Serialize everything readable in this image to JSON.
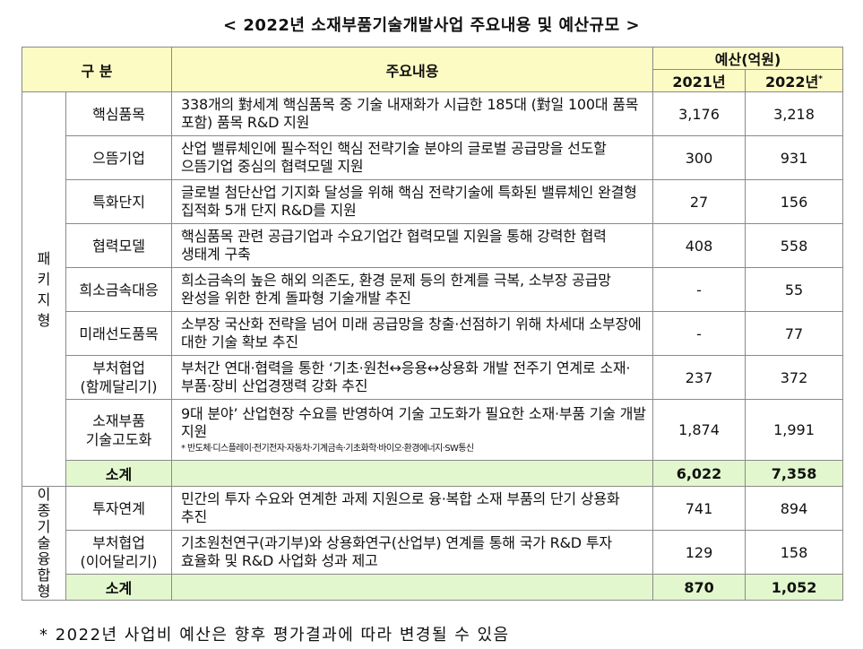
{
  "title": "< 2022년 소재부품기술개발사업 주요내용 및 예산규모 >",
  "header": {
    "category": "구  분",
    "content": "주요내용",
    "budget": "예산(억원)",
    "year_2021": "2021년",
    "year_2022": "2022년",
    "year_2022_mark": "*"
  },
  "groups": {
    "package": [
      "패",
      "키",
      "지",
      "형"
    ],
    "convergence": [
      "이",
      "종",
      "기",
      "술",
      "융",
      "합",
      "형"
    ]
  },
  "rows": [
    {
      "item": "핵심품목",
      "desc": "338개의 對세계 핵심품목 중 기술 내재화가 시급한 185대 (對일 100대 품목 포함) 품목 R&D 지원",
      "y2021": "3,176",
      "y2022": "3,218"
    },
    {
      "item": "으뜸기업",
      "desc": "산업 밸류체인에 필수적인 핵심 전략기술 분야의 글로벌 공급망을 선도할 으뜸기업 중심의 협력모델 지원",
      "y2021": "300",
      "y2022": "931"
    },
    {
      "item": "특화단지",
      "desc": "글로벌 첨단산업 기지화 달성을 위해 핵심 전략기술에 특화된 밸류체인 완결형 집적화 5개 단지 R&D를 지원",
      "y2021": "27",
      "y2022": "156"
    },
    {
      "item": "협력모델",
      "desc": "핵심품목 관련 공급기업과 수요기업간 협력모델 지원을 통해 강력한 협력 생태계 구축",
      "y2021": "408",
      "y2022": "558"
    },
    {
      "item": "희소금속대응",
      "desc": "희소금속의 높은 해외 의존도, 환경 문제 등의 한계를 극복, 소부장 공급망 완성을 위한 한계 돌파형 기술개발 추진",
      "y2021": "-",
      "y2022": "55"
    },
    {
      "item": "미래선도품목",
      "desc": "소부장 국산화 전략을 넘어 미래 공급망을 창출·선점하기 위해 차세대 소부장에 대한 기술 확보 추진",
      "y2021": "-",
      "y2022": "77"
    },
    {
      "item_line1": "부처협업",
      "item_line2": "(함께달리기)",
      "desc": "부처간 연대·협력을 통한 ‘기초·원천↔응용↔상용화 개발 전주기 연계로 소재·부품·장비 산업경쟁력 강화 추진",
      "y2021": "237",
      "y2022": "372"
    },
    {
      "item_line1": "소재부품",
      "item_line2": "기술고도화",
      "desc": "9대 분야’ 산업현장 수요를 반영하여 기술 고도화가 필요한 소재·부품 기술 개발 지원",
      "note": "* 반도체·디스플레이·전기전자·자동차·기계금속·기초화학·바이오·환경에너지·SW통신",
      "y2021": "1,874",
      "y2022": "1,991"
    }
  ],
  "subtotal_package": {
    "label": "소계",
    "y2021": "6,022",
    "y2022": "7,358"
  },
  "rows_convergence": [
    {
      "item": "투자연계",
      "desc": "민간의 투자 수요와 연계한 과제 지원으로 융·복합 소재 부품의 단기 상용화 추진",
      "y2021": "741",
      "y2022": "894"
    },
    {
      "item_line1": "부처협업",
      "item_line2": "(이어달리기)",
      "desc": "기초원천연구(과기부)와 상용화연구(산업부) 연계를 통해 국가 R&D 투자 효율화 및 R&D 사업화 성과 제고",
      "y2021": "129",
      "y2022": "158"
    }
  ],
  "subtotal_convergence": {
    "label": "소계",
    "y2021": "870",
    "y2022": "1,052"
  },
  "footnote": "* 2022년 사업비 예산은 향후 평가결과에 따라 변경될 수 있음",
  "colors": {
    "header_bg": "#fdfbc4",
    "subtotal_bg": "#e2f7cd",
    "border": "#8a8a8a"
  }
}
